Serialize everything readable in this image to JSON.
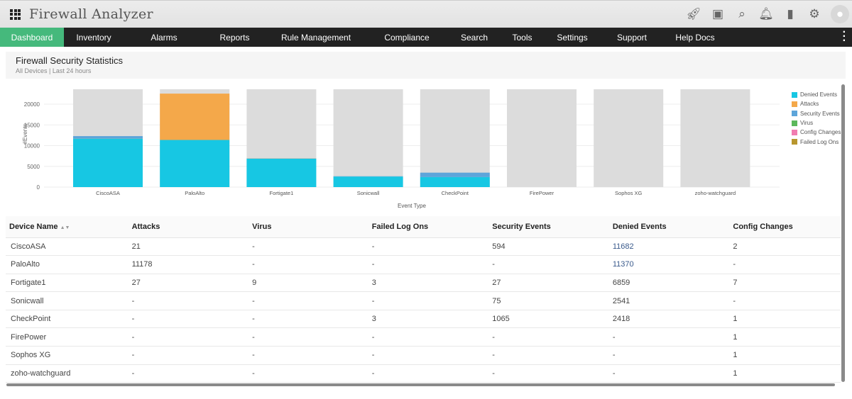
{
  "app": {
    "title": "Firewall Analyzer",
    "top_icons": [
      "rocket-icon",
      "presentation-icon",
      "search-icon",
      "bell-icon",
      "ticket-icon",
      "gear-icon",
      "user-avatar-icon"
    ]
  },
  "nav": {
    "items": [
      "Dashboard",
      "Inventory",
      "Alarms",
      "Reports",
      "Rule Management",
      "Compliance",
      "Search",
      "Tools",
      "Settings",
      "Support",
      "Help Docs"
    ],
    "active": "Dashboard"
  },
  "panel": {
    "title": "Firewall Security Statistics",
    "subtitle": "All Devices | Last 24 hours"
  },
  "chart_data": {
    "type": "bar",
    "stacked": true,
    "categories": [
      "CiscoASA",
      "PaloAlto",
      "Fortigate1",
      "Sonicwall",
      "CheckPoint",
      "FirePower",
      "Sophos XG",
      "zoho-watchguard"
    ],
    "series": [
      {
        "name": "Denied Events",
        "color": "#17c7e3",
        "values": [
          11682,
          11370,
          6859,
          2541,
          2418,
          0,
          0,
          0
        ]
      },
      {
        "name": "Attacks",
        "color": "#f4a84a",
        "values": [
          21,
          11178,
          27,
          0,
          0,
          0,
          0,
          0
        ]
      },
      {
        "name": "Security Events",
        "color": "#5da5da",
        "values": [
          594,
          0,
          27,
          75,
          1065,
          0,
          0,
          0
        ]
      },
      {
        "name": "Virus",
        "color": "#5cb85c",
        "values": [
          0,
          0,
          9,
          0,
          0,
          0,
          0,
          0
        ]
      },
      {
        "name": "Config Changes",
        "color": "#f17cb0",
        "values": [
          2,
          0,
          7,
          0,
          1,
          1,
          1,
          1
        ]
      },
      {
        "name": "Failed Log Ons",
        "color": "#b8962e",
        "values": [
          0,
          0,
          3,
          0,
          3,
          0,
          0,
          0
        ]
      }
    ],
    "xlabel": "Event Type",
    "ylabel": "#Events",
    "ylim": [
      0,
      23600
    ],
    "yticks": [
      0,
      5000,
      10000,
      15000,
      20000
    ],
    "grid": true,
    "legend": "right",
    "background_bar_color": "#dcdcdc"
  },
  "table": {
    "headers": [
      "Device Name",
      "Attacks",
      "Virus",
      "Failed Log Ons",
      "Security Events",
      "Denied Events",
      "Config Changes"
    ],
    "sort_column": "Device Name",
    "rows": [
      [
        "CiscoASA",
        "21",
        "-",
        "-",
        "594",
        "11682",
        "2"
      ],
      [
        "PaloAlto",
        "11178",
        "-",
        "-",
        "-",
        "11370",
        "-"
      ],
      [
        "Fortigate1",
        "27",
        "9",
        "3",
        "27",
        "6859",
        "7"
      ],
      [
        "Sonicwall",
        "-",
        "-",
        "-",
        "75",
        "2541",
        "-"
      ],
      [
        "CheckPoint",
        "-",
        "-",
        "3",
        "1065",
        "2418",
        "1"
      ],
      [
        "FirePower",
        "-",
        "-",
        "-",
        "-",
        "-",
        "1"
      ],
      [
        "Sophos XG",
        "-",
        "-",
        "-",
        "-",
        "-",
        "1"
      ],
      [
        "zoho-watchguard",
        "-",
        "-",
        "-",
        "-",
        "-",
        "1"
      ]
    ]
  }
}
